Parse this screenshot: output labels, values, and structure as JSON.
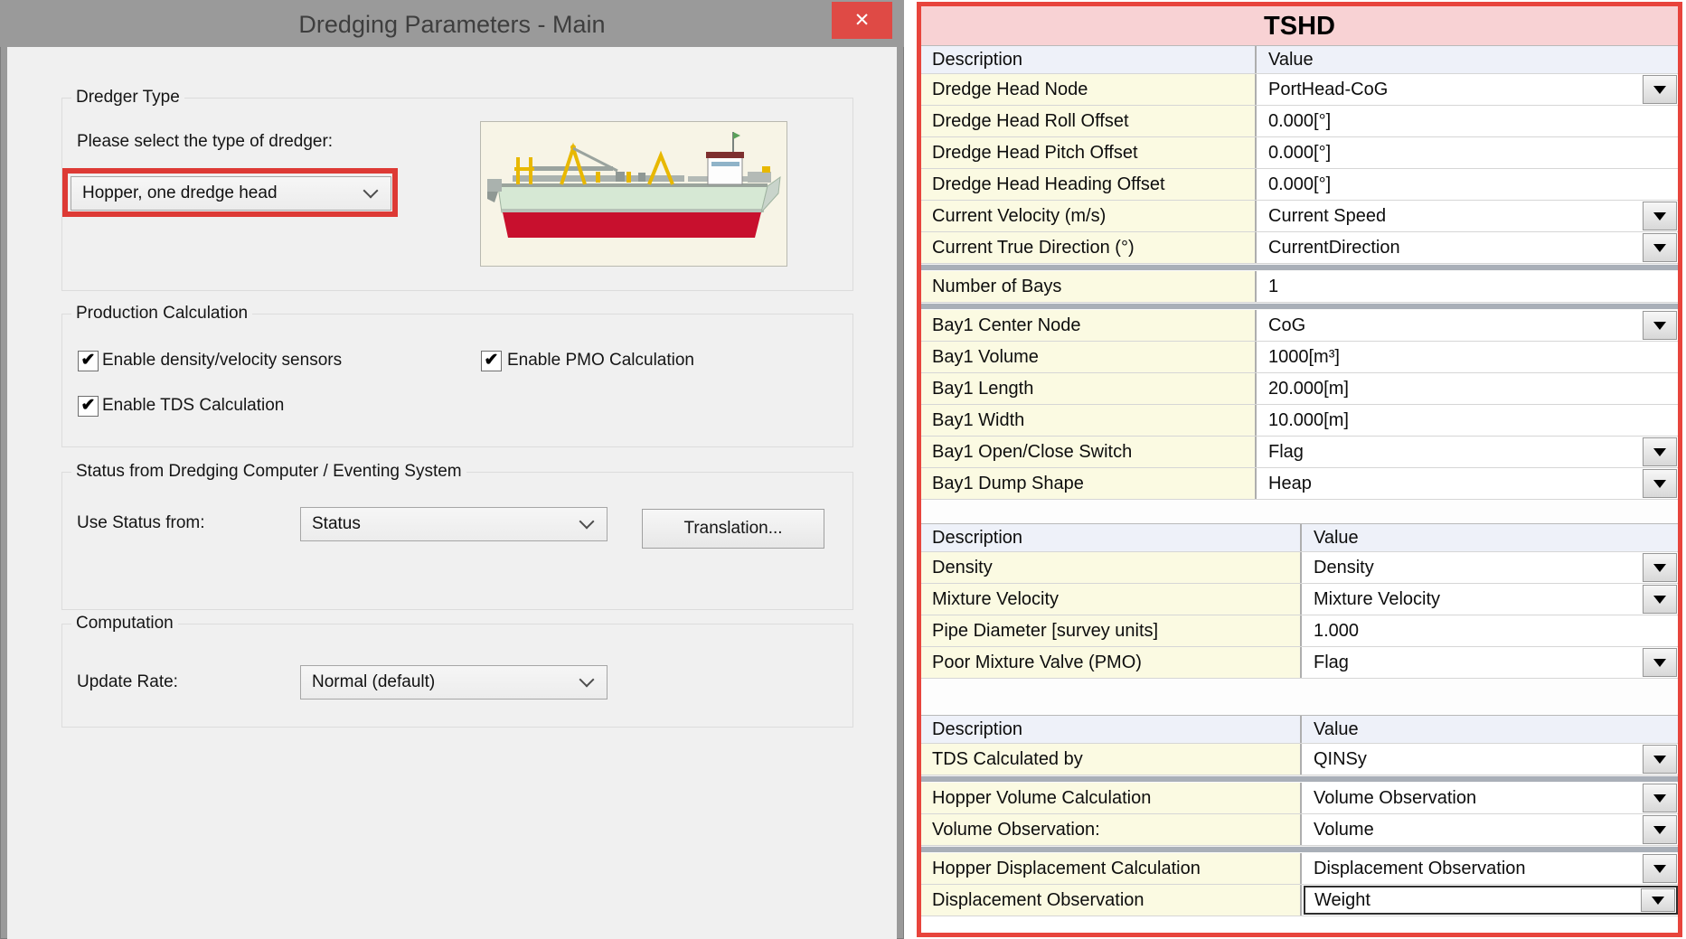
{
  "dialog": {
    "title": "Dredging Parameters - Main",
    "close_icon": "✕",
    "dredger_type": {
      "label": "Dredger Type",
      "prompt": "Please select the type of dredger:",
      "dropdown_value": "Hopper, one dredge head",
      "image": "side-view illustration of trailing suction hopper dredger"
    },
    "production": {
      "label": "Production Calculation",
      "checkboxes": [
        {
          "label": "Enable density/velocity sensors",
          "checked": true
        },
        {
          "label": "Enable PMO Calculation",
          "checked": true
        },
        {
          "label": "Enable TDS Calculation",
          "checked": true
        }
      ],
      "check_glyph": "✔"
    },
    "status": {
      "label": "Status from Dredging Computer / Eventing System",
      "field_label": "Use Status from:",
      "dropdown_value": "Status",
      "button_label": "Translation..."
    },
    "computation": {
      "label": "Computation",
      "field_label": "Update Rate:",
      "dropdown_value": "Normal (default)"
    }
  },
  "panel": {
    "title": "TSHD",
    "accent_border_color": "#e8443c",
    "title_bg_color": "#f8d2d4",
    "description_cell_color": "#fbfae2",
    "tables": [
      {
        "header": {
          "description": "Description",
          "value": "Value"
        },
        "rows": [
          {
            "label": "Dredge Head Node",
            "value": "PortHead-CoG",
            "control": "dropdown"
          },
          {
            "label": "Dredge Head Roll Offset",
            "value": "0.000[°]",
            "control": "text"
          },
          {
            "label": "Dredge Head Pitch Offset",
            "value": "0.000[°]",
            "control": "text"
          },
          {
            "label": "Dredge Head Heading Offset",
            "value": "0.000[°]",
            "control": "text"
          },
          {
            "label": "Current Velocity (m/s)",
            "value": "Current Speed",
            "control": "dropdown"
          },
          {
            "label": "Current True Direction (°)",
            "value": "CurrentDirection",
            "control": "dropdown"
          },
          {
            "separator": true
          },
          {
            "label": "Number of Bays",
            "value": "1",
            "control": "text"
          },
          {
            "separator": true
          },
          {
            "label": "Bay1 Center Node",
            "value": "CoG",
            "control": "dropdown"
          },
          {
            "label": "Bay1 Volume",
            "value": "1000[m³]",
            "control": "text"
          },
          {
            "label": "Bay1 Length",
            "value": "20.000[m]",
            "control": "text"
          },
          {
            "label": "Bay1 Width",
            "value": "10.000[m]",
            "control": "text"
          },
          {
            "label": "Bay1 Open/Close Switch",
            "value": "Flag",
            "control": "dropdown"
          },
          {
            "label": "Bay1 Dump Shape",
            "value": "Heap",
            "control": "dropdown"
          }
        ]
      },
      {
        "header": {
          "description": "Description",
          "value": "Value"
        },
        "rows": [
          {
            "label": "Density",
            "value": "Density",
            "control": "dropdown"
          },
          {
            "label": "Mixture Velocity",
            "value": "Mixture Velocity",
            "control": "dropdown"
          },
          {
            "label": "Pipe Diameter [survey units]",
            "value": "1.000",
            "control": "text"
          },
          {
            "label": "Poor Mixture Valve (PMO)",
            "value": "Flag",
            "control": "dropdown"
          }
        ]
      },
      {
        "header": {
          "description": "Description",
          "value": "Value"
        },
        "rows": [
          {
            "label": "TDS Calculated by",
            "value": "QINSy",
            "control": "dropdown"
          },
          {
            "separator": true
          },
          {
            "label": "Hopper Volume Calculation",
            "value": "Volume Observation",
            "control": "dropdown"
          },
          {
            "label": "Volume Observation:",
            "value": "Volume",
            "control": "dropdown"
          },
          {
            "separator": true
          },
          {
            "label": "Hopper Displacement Calculation",
            "value": "Displacement Observation",
            "control": "dropdown"
          },
          {
            "label": "Displacement Observation",
            "value": "Weight",
            "control": "dropdown",
            "focused": true
          }
        ]
      }
    ]
  }
}
